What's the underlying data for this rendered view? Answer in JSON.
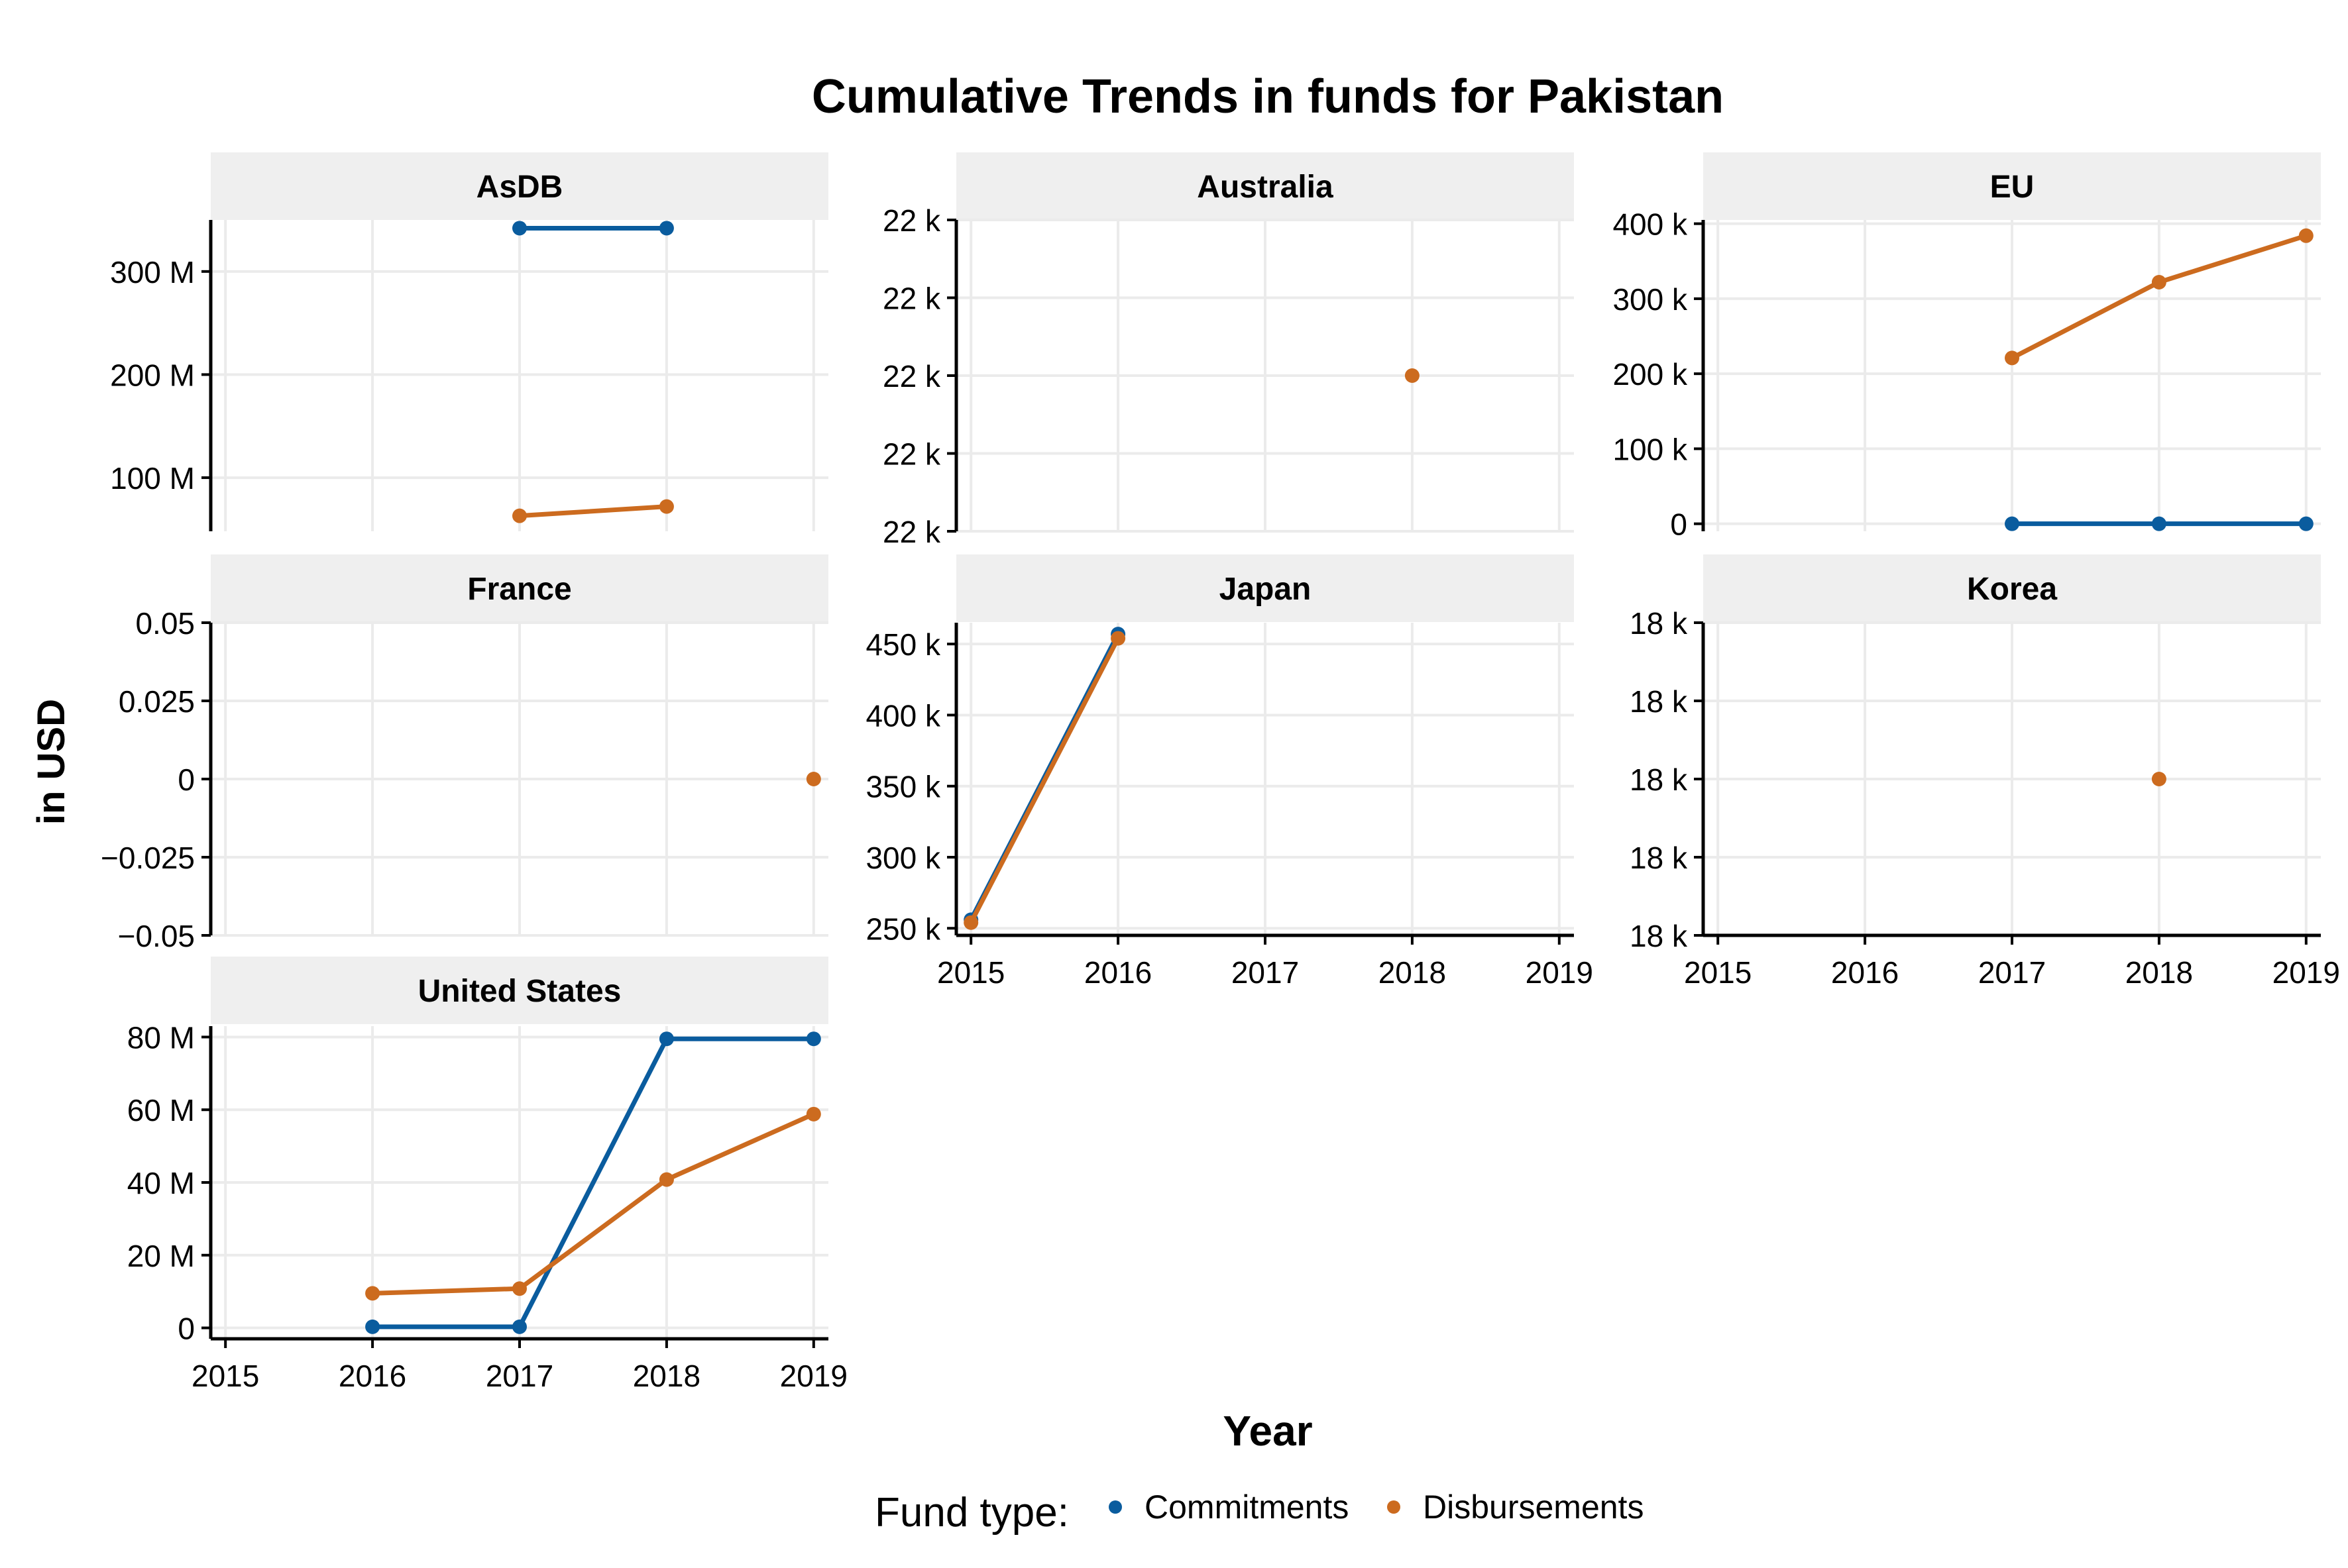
{
  "title": "Cumulative Trends in funds for Pakistan",
  "x_axis_label": "Year",
  "y_axis_label": "in USD",
  "legend": {
    "title": "Fund type:",
    "items": [
      {
        "label": "Commitments",
        "color": "#0a5c9e"
      },
      {
        "label": "Disbursements",
        "color": "#cc6b1f"
      }
    ]
  },
  "chart_data": {
    "type": "line",
    "layout": "facet_wrap",
    "ncol": 3,
    "x_ticks": [
      "2015",
      "2016",
      "2017",
      "2018",
      "2019"
    ],
    "xlim": [
      2014.9,
      2019.1
    ],
    "grid": true,
    "legend_position": "bottom",
    "series_names": [
      "Commitments",
      "Disbursements"
    ],
    "panels": [
      {
        "name": "AsDB",
        "ylim": [
          48,
          350
        ],
        "y_ticks": [
          {
            "value": 100,
            "label": "100 M"
          },
          {
            "value": 200,
            "label": "200 M"
          },
          {
            "value": 300,
            "label": "300 M"
          }
        ],
        "series": [
          {
            "name": "Commitments",
            "x": [
              2017,
              2018
            ],
            "y": [
              342,
              342
            ]
          },
          {
            "name": "Disbursements",
            "x": [
              2017,
              2018
            ],
            "y": [
              63,
              72
            ]
          }
        ]
      },
      {
        "name": "Australia",
        "ylim": [
          0,
          4
        ],
        "y_ticks": [
          {
            "value": 0,
            "label": "22 k"
          },
          {
            "value": 1,
            "label": "22 k"
          },
          {
            "value": 2,
            "label": "22 k"
          },
          {
            "value": 3,
            "label": "22 k"
          },
          {
            "value": 4,
            "label": "22 k"
          }
        ],
        "series": [
          {
            "name": "Commitments",
            "x": [],
            "y": []
          },
          {
            "name": "Disbursements",
            "x": [
              2018
            ],
            "y": [
              2
            ]
          }
        ]
      },
      {
        "name": "EU",
        "ylim": [
          -10,
          405
        ],
        "y_ticks": [
          {
            "value": 0,
            "label": "0"
          },
          {
            "value": 100,
            "label": "100 k"
          },
          {
            "value": 200,
            "label": "200 k"
          },
          {
            "value": 300,
            "label": "300 k"
          },
          {
            "value": 400,
            "label": "400 k"
          }
        ],
        "series": [
          {
            "name": "Commitments",
            "x": [
              2017,
              2018,
              2019
            ],
            "y": [
              0,
              0,
              0
            ]
          },
          {
            "name": "Disbursements",
            "x": [
              2017,
              2018,
              2019
            ],
            "y": [
              221,
              322,
              384
            ]
          }
        ]
      },
      {
        "name": "France",
        "ylim": [
          -0.05,
          0.05
        ],
        "y_ticks": [
          {
            "value": -0.05,
            "label": "−0.05"
          },
          {
            "value": -0.025,
            "label": "−0.025"
          },
          {
            "value": 0,
            "label": "0"
          },
          {
            "value": 0.025,
            "label": "0.025"
          },
          {
            "value": 0.05,
            "label": "0.05"
          }
        ],
        "series": [
          {
            "name": "Commitments",
            "x": [],
            "y": []
          },
          {
            "name": "Disbursements",
            "x": [
              2019
            ],
            "y": [
              0
            ]
          }
        ]
      },
      {
        "name": "Japan",
        "ylim": [
          245,
          465
        ],
        "y_ticks": [
          {
            "value": 250,
            "label": "250 k"
          },
          {
            "value": 300,
            "label": "300 k"
          },
          {
            "value": 350,
            "label": "350 k"
          },
          {
            "value": 400,
            "label": "400 k"
          },
          {
            "value": 450,
            "label": "450 k"
          }
        ],
        "series": [
          {
            "name": "Commitments",
            "x": [
              2015,
              2016
            ],
            "y": [
              256,
              457
            ]
          },
          {
            "name": "Disbursements",
            "x": [
              2015,
              2016
            ],
            "y": [
              254,
              454
            ]
          }
        ]
      },
      {
        "name": "Korea",
        "ylim": [
          0,
          4
        ],
        "y_ticks": [
          {
            "value": 0,
            "label": "18 k"
          },
          {
            "value": 1,
            "label": "18 k"
          },
          {
            "value": 2,
            "label": "18 k"
          },
          {
            "value": 3,
            "label": "18 k"
          },
          {
            "value": 4,
            "label": "18 k"
          }
        ],
        "series": [
          {
            "name": "Commitments",
            "x": [],
            "y": []
          },
          {
            "name": "Disbursements",
            "x": [
              2018
            ],
            "y": [
              2
            ]
          }
        ]
      },
      {
        "name": "United States",
        "ylim": [
          -3,
          83
        ],
        "y_ticks": [
          {
            "value": 0,
            "label": "0"
          },
          {
            "value": 20,
            "label": "20 M"
          },
          {
            "value": 40,
            "label": "40 M"
          },
          {
            "value": 60,
            "label": "60 M"
          },
          {
            "value": 80,
            "label": "80 M"
          }
        ],
        "series": [
          {
            "name": "Commitments",
            "x": [
              2016,
              2017,
              2018,
              2019
            ],
            "y": [
              0.3,
              0.3,
              79.5,
              79.5
            ]
          },
          {
            "name": "Disbursements",
            "x": [
              2016,
              2017,
              2018,
              2019
            ],
            "y": [
              9.5,
              10.8,
              40.8,
              58.8
            ]
          }
        ]
      }
    ]
  }
}
